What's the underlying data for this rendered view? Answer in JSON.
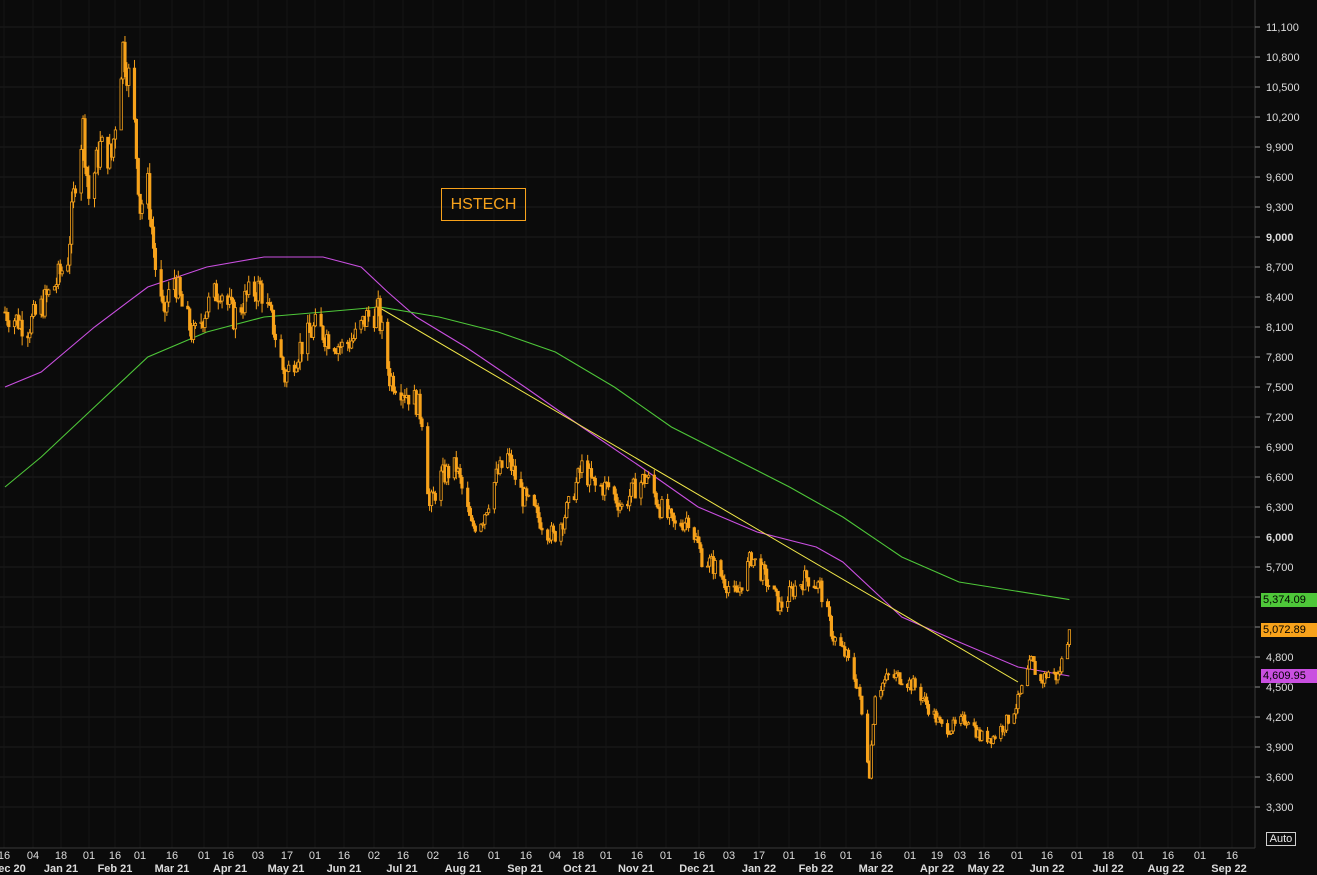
{
  "chart_data": {
    "type": "candlestick",
    "title": "HSTECH",
    "ylim": [
      3200,
      11200
    ],
    "y_ticks": [
      "11,100",
      "10,800",
      "10,500",
      "10,200",
      "9,900",
      "9,600",
      "9,300",
      "9,000",
      "8,700",
      "8,400",
      "8,100",
      "7,800",
      "7,500",
      "7,200",
      "6,900",
      "6,600",
      "6,300",
      "6,000",
      "5,700",
      "5,400",
      "5,100",
      "4,800",
      "4,500",
      "4,200",
      "3,900",
      "3,600",
      "3,300"
    ],
    "y_tick_values": [
      11100,
      10800,
      10500,
      10200,
      9900,
      9600,
      9300,
      9000,
      8700,
      8400,
      8100,
      7800,
      7500,
      7200,
      6900,
      6600,
      6300,
      6000,
      5700,
      5400,
      5100,
      4800,
      4500,
      4200,
      3900,
      3600,
      3300
    ],
    "bold_y_ticks": [
      "9,000",
      "6,000"
    ],
    "x_day_labels": [
      "16",
      "04",
      "18",
      "01",
      "16",
      "01",
      "16",
      "01",
      "16",
      "03",
      "17",
      "01",
      "16",
      "02",
      "16",
      "02",
      "16",
      "01",
      "16",
      "04",
      "18",
      "01",
      "16",
      "01",
      "16",
      "03",
      "17",
      "01",
      "16",
      "01",
      "16",
      "01",
      "19",
      "03",
      "16",
      "01",
      "16",
      "01",
      "18",
      "01",
      "16",
      "01",
      "16"
    ],
    "x_month_labels": [
      "Dec 20",
      "Jan 21",
      "Feb 21",
      "Mar 21",
      "Apr 21",
      "May 21",
      "Jun 21",
      "Jul 21",
      "Aug 21",
      "Sep 21",
      "Oct 21",
      "Nov 21",
      "Dec 21",
      "Jan 22",
      "Feb 22",
      "Mar 22",
      "Apr 22",
      "May 22",
      "Jun 22",
      "Jul 22",
      "Aug 22",
      "Sep 22"
    ],
    "price_anchors": [
      [
        "2020-12-16",
        8250
      ],
      [
        "2020-12-28",
        8100
      ],
      [
        "2021-01-04",
        8300
      ],
      [
        "2021-01-12",
        8550
      ],
      [
        "2021-01-18",
        8800
      ],
      [
        "2021-01-22",
        9600
      ],
      [
        "2021-01-26",
        10100
      ],
      [
        "2021-01-29",
        9400
      ],
      [
        "2021-02-04",
        9900
      ],
      [
        "2021-02-10",
        9800
      ],
      [
        "2021-02-16",
        10900
      ],
      [
        "2021-02-19",
        10600
      ],
      [
        "2021-02-22",
        10100
      ],
      [
        "2021-02-25",
        9300
      ],
      [
        "2021-03-01",
        9500
      ],
      [
        "2021-03-05",
        8700
      ],
      [
        "2021-03-09",
        8200
      ],
      [
        "2021-03-15",
        8600
      ],
      [
        "2021-03-19",
        8300
      ],
      [
        "2021-03-25",
        8000
      ],
      [
        "2021-04-01",
        8300
      ],
      [
        "2021-04-08",
        8500
      ],
      [
        "2021-04-15",
        8200
      ],
      [
        "2021-04-22",
        8400
      ],
      [
        "2021-04-29",
        8500
      ],
      [
        "2021-05-06",
        8100
      ],
      [
        "2021-05-12",
        7600
      ],
      [
        "2021-05-20",
        7900
      ],
      [
        "2021-05-28",
        8100
      ],
      [
        "2021-06-04",
        8000
      ],
      [
        "2021-06-11",
        7900
      ],
      [
        "2021-06-18",
        8000
      ],
      [
        "2021-06-24",
        8200
      ],
      [
        "2021-06-30",
        8250
      ],
      [
        "2021-07-06",
        7600
      ],
      [
        "2021-07-12",
        7500
      ],
      [
        "2021-07-20",
        7350
      ],
      [
        "2021-07-23",
        7200
      ],
      [
        "2021-07-27",
        6300
      ],
      [
        "2021-08-02",
        6600
      ],
      [
        "2021-08-10",
        6700
      ],
      [
        "2021-08-18",
        6100
      ],
      [
        "2021-08-24",
        6200
      ],
      [
        "2021-08-31",
        6600
      ],
      [
        "2021-09-06",
        6800
      ],
      [
        "2021-09-14",
        6400
      ],
      [
        "2021-09-22",
        6200
      ],
      [
        "2021-09-30",
        6000
      ],
      [
        "2021-10-08",
        6300
      ],
      [
        "2021-10-15",
        6700
      ],
      [
        "2021-10-22",
        6500
      ],
      [
        "2021-10-29",
        6500
      ],
      [
        "2021-11-05",
        6300
      ],
      [
        "2021-11-12",
        6500
      ],
      [
        "2021-11-18",
        6600
      ],
      [
        "2021-11-25",
        6300
      ],
      [
        "2021-12-03",
        6100
      ],
      [
        "2021-12-10",
        6200
      ],
      [
        "2021-12-17",
        5800
      ],
      [
        "2021-12-24",
        5700
      ],
      [
        "2022-01-04",
        5400
      ],
      [
        "2022-01-12",
        5800
      ],
      [
        "2022-01-19",
        5600
      ],
      [
        "2022-01-27",
        5300
      ],
      [
        "2022-02-04",
        5500
      ],
      [
        "2022-02-10",
        5600
      ],
      [
        "2022-02-17",
        5500
      ],
      [
        "2022-02-24",
        5000
      ],
      [
        "2022-03-03",
        4800
      ],
      [
        "2022-03-09",
        4500
      ],
      [
        "2022-03-15",
        3650
      ],
      [
        "2022-03-18",
        4450
      ],
      [
        "2022-03-25",
        4600
      ],
      [
        "2022-04-01",
        4600
      ],
      [
        "2022-04-08",
        4500
      ],
      [
        "2022-04-15",
        4300
      ],
      [
        "2022-04-22",
        4100
      ],
      [
        "2022-04-29",
        4100
      ],
      [
        "2022-05-06",
        4200
      ],
      [
        "2022-05-12",
        4000
      ],
      [
        "2022-05-19",
        4000
      ],
      [
        "2022-05-26",
        4150
      ],
      [
        "2022-06-01",
        4350
      ],
      [
        "2022-06-08",
        4750
      ],
      [
        "2022-06-13",
        4550
      ],
      [
        "2022-06-17",
        4650
      ],
      [
        "2022-06-22",
        4600
      ],
      [
        "2022-06-24",
        4750
      ],
      [
        "2022-06-28",
        5072.89
      ]
    ],
    "series": [
      {
        "name": "100-day moving average",
        "color": "#c94fe0",
        "last_value_label": "4,609.95",
        "points": [
          [
            "2020-12-16",
            7500
          ],
          [
            "2021-01-04",
            7650
          ],
          [
            "2021-02-01",
            8100
          ],
          [
            "2021-03-01",
            8500
          ],
          [
            "2021-04-01",
            8700
          ],
          [
            "2021-05-01",
            8800
          ],
          [
            "2021-06-01",
            8800
          ],
          [
            "2021-06-21",
            8700
          ],
          [
            "2021-07-05",
            8450
          ],
          [
            "2021-07-20",
            8200
          ],
          [
            "2021-08-15",
            7900
          ],
          [
            "2021-09-15",
            7500
          ],
          [
            "2021-10-15",
            7100
          ],
          [
            "2021-11-15",
            6700
          ],
          [
            "2021-12-15",
            6300
          ],
          [
            "2022-01-15",
            6050
          ],
          [
            "2022-02-15",
            5900
          ],
          [
            "2022-03-01",
            5750
          ],
          [
            "2022-04-01",
            5200
          ],
          [
            "2022-05-01",
            4950
          ],
          [
            "2022-06-01",
            4700
          ],
          [
            "2022-06-28",
            4609.95
          ]
        ]
      },
      {
        "name": "200-day moving average",
        "color": "#4ec739",
        "last_value_label": "5,374.09",
        "points": [
          [
            "2020-12-16",
            6500
          ],
          [
            "2021-01-04",
            6800
          ],
          [
            "2021-02-01",
            7300
          ],
          [
            "2021-03-01",
            7800
          ],
          [
            "2021-04-01",
            8050
          ],
          [
            "2021-05-01",
            8200
          ],
          [
            "2021-06-01",
            8250
          ],
          [
            "2021-07-01",
            8300
          ],
          [
            "2021-08-01",
            8200
          ],
          [
            "2021-09-01",
            8050
          ],
          [
            "2021-10-01",
            7850
          ],
          [
            "2021-11-01",
            7500
          ],
          [
            "2021-12-01",
            7100
          ],
          [
            "2022-01-01",
            6800
          ],
          [
            "2022-02-01",
            6500
          ],
          [
            "2022-03-01",
            6200
          ],
          [
            "2022-04-01",
            5800
          ],
          [
            "2022-05-01",
            5550
          ],
          [
            "2022-06-28",
            5374.09
          ]
        ]
      }
    ],
    "trendline": {
      "color": "#f2e84a",
      "from": [
        "2021-06-30",
        8300
      ],
      "to": [
        "2022-06-01",
        4550
      ]
    },
    "last_price_label": "5,072.89",
    "last_price_color": "#f7a21b",
    "grid": true,
    "auto_label": "Auto"
  }
}
